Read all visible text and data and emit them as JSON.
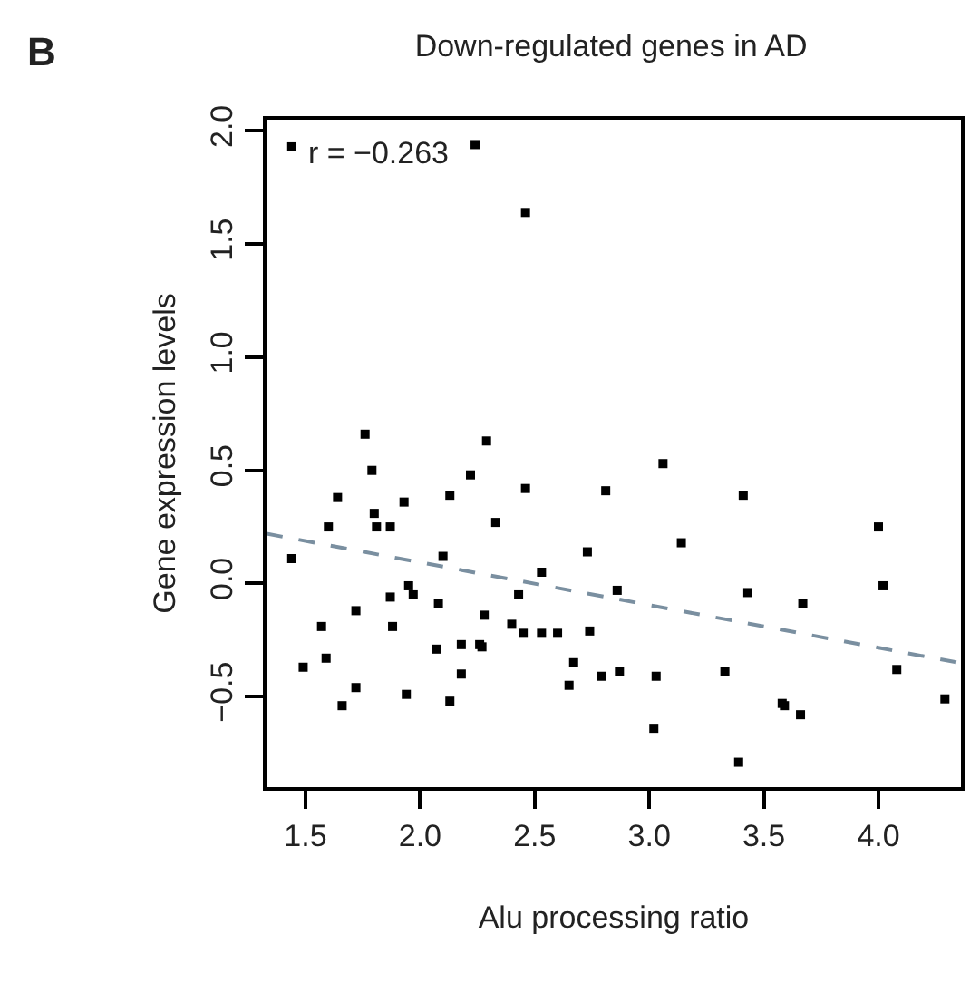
{
  "chart_data": {
    "type": "scatter",
    "title": "Down-regulated genes in AD",
    "xlabel": "Alu processing ratio",
    "ylabel": "Gene expression levels",
    "annotations": [
      "B",
      "r = −0.263"
    ],
    "xlim": [
      1.33,
      4.36
    ],
    "ylim": [
      -0.9,
      2.05
    ],
    "xticks": [
      {
        "value": 1.5,
        "label": "1.5"
      },
      {
        "value": 2.0,
        "label": "2.0"
      },
      {
        "value": 2.5,
        "label": "2.5"
      },
      {
        "value": 3.0,
        "label": "3.0"
      },
      {
        "value": 3.5,
        "label": "3.5"
      },
      {
        "value": 4.0,
        "label": "4.0"
      }
    ],
    "yticks": [
      {
        "value": -0.5,
        "label": "−0.5"
      },
      {
        "value": 0.0,
        "label": "0.0"
      },
      {
        "value": 0.5,
        "label": "0.5"
      },
      {
        "value": 1.0,
        "label": "1.0"
      },
      {
        "value": 1.5,
        "label": "1.5"
      },
      {
        "value": 2.0,
        "label": "2.0"
      }
    ],
    "grid": false,
    "series": [
      {
        "marker": "square",
        "color": "#000000",
        "x": [
          1.44,
          2.24,
          2.46,
          1.76,
          2.29,
          1.79,
          2.22,
          2.46,
          1.64,
          2.13,
          1.93,
          1.8,
          1.6,
          1.81,
          1.87,
          2.33,
          1.44,
          2.1,
          2.53,
          1.95,
          1.97,
          1.87,
          2.43,
          2.08,
          1.72,
          2.28,
          2.73,
          2.4,
          1.57,
          1.88,
          2.45,
          2.53,
          2.6,
          2.74,
          2.07,
          2.18,
          2.26,
          2.27,
          1.49,
          1.59,
          2.18,
          2.67,
          2.65,
          1.72,
          1.94,
          1.66,
          2.13,
          3.06,
          2.81,
          3.41,
          3.14,
          4.0,
          2.86,
          3.43,
          4.02,
          3.67,
          2.79,
          2.87,
          3.03,
          3.33,
          4.08,
          4.29,
          3.58,
          3.59,
          3.66,
          3.02,
          3.39
        ],
        "values": [
          1.93,
          1.94,
          1.64,
          0.66,
          0.63,
          0.5,
          0.48,
          0.42,
          0.38,
          0.39,
          0.36,
          0.31,
          0.25,
          0.25,
          0.25,
          0.27,
          0.11,
          0.12,
          0.05,
          -0.01,
          -0.05,
          -0.06,
          -0.05,
          -0.09,
          -0.12,
          -0.14,
          0.14,
          -0.18,
          -0.19,
          -0.19,
          -0.22,
          -0.22,
          -0.22,
          -0.21,
          -0.29,
          -0.27,
          -0.27,
          -0.28,
          -0.37,
          -0.33,
          -0.4,
          -0.35,
          -0.45,
          -0.46,
          -0.49,
          -0.54,
          -0.52,
          0.53,
          0.41,
          0.39,
          0.18,
          0.25,
          -0.03,
          -0.04,
          -0.01,
          -0.09,
          -0.41,
          -0.39,
          -0.41,
          -0.39,
          -0.38,
          -0.51,
          -0.53,
          -0.54,
          -0.58,
          -0.64,
          -0.79
        ]
      },
      {
        "type": "line",
        "line_style": "dashed",
        "color": "#7a8fa0",
        "x": [
          1.33,
          4.35
        ],
        "values": [
          0.22,
          -0.35
        ]
      }
    ]
  }
}
